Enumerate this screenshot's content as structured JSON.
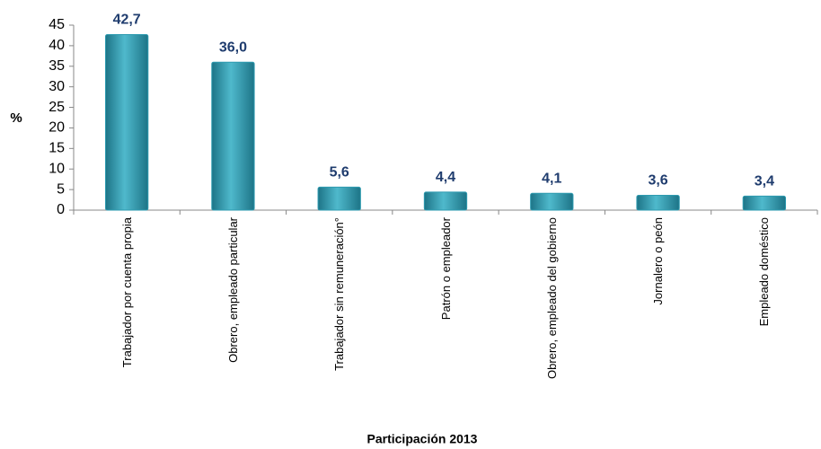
{
  "chart_data": {
    "type": "bar",
    "categories": [
      "Trabajador por cuenta propia",
      "Obrero, empleado particular",
      "Trabajador sin remuneración°",
      "Patrón o empleador",
      "Obrero, empleado del gobierno",
      "Jornalero o peón",
      "Empleado doméstico"
    ],
    "values": [
      42.7,
      36.0,
      5.6,
      4.4,
      4.1,
      3.6,
      3.4
    ],
    "value_labels": [
      "42,7",
      "36,0",
      "5,6",
      "4,4",
      "4,1",
      "3,6",
      "3,4"
    ],
    "color": "#2e9bb0",
    "ylabel": "%",
    "xlabel": "Participación 2013",
    "ylim": [
      0,
      45
    ],
    "yticks": [
      0,
      5,
      10,
      15,
      20,
      25,
      30,
      35,
      40,
      45
    ]
  }
}
